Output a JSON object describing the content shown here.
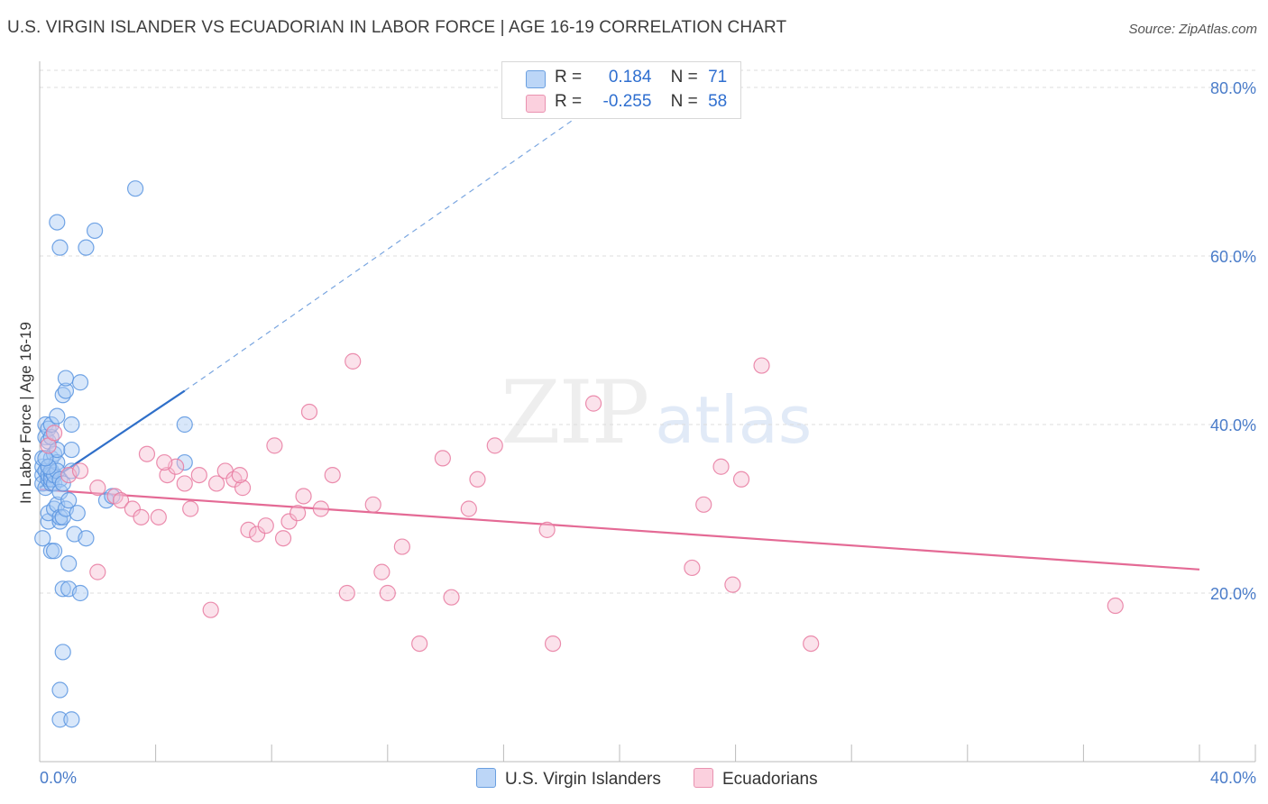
{
  "title": "U.S. VIRGIN ISLANDER VS ECUADORIAN IN LABOR FORCE | AGE 16-19 CORRELATION CHART",
  "source": "Source: ZipAtlas.com",
  "watermark": {
    "zip": "ZIP",
    "atlas": "atlas"
  },
  "legend": {
    "rows": [
      {
        "r_label": "R =",
        "r_value": "0.184",
        "n_label": "N =",
        "n_value": "71",
        "color": "#a9c9f5"
      },
      {
        "r_label": "R =",
        "r_value": "-0.255",
        "n_label": "N =",
        "n_value": "58",
        "color": "#f7bfd2"
      }
    ]
  },
  "bottom_legend": [
    {
      "label": "U.S. Virgin Islanders",
      "color": "#a9c9f5"
    },
    {
      "label": "Ecuadorians",
      "color": "#f7bfd2"
    }
  ],
  "chart_data": {
    "type": "scatter",
    "title": "U.S. VIRGIN ISLANDER VS ECUADORIAN IN LABOR FORCE | AGE 16-19 CORRELATION CHART",
    "xlabel": "",
    "ylabel": "In Labor Force | Age 16-19",
    "xlim": [
      0,
      40
    ],
    "ylim": [
      0,
      82
    ],
    "x_tick_labels": [
      "0.0%",
      "40.0%"
    ],
    "y_ticks": [
      20,
      40,
      60,
      80
    ],
    "y_tick_labels": [
      "20.0%",
      "40.0%",
      "60.0%",
      "80.0%"
    ],
    "grid": true,
    "legend_position": "top-center",
    "series": [
      {
        "name": "U.S. Virgin Islanders",
        "color": "#5a95e0",
        "fill": "#a9c9f5",
        "r": 0.184,
        "n": 71,
        "trend": {
          "x": [
            0,
            5.0
          ],
          "y": [
            32.5,
            44.0
          ],
          "extend_to": [
            20.0,
            80.0
          ]
        },
        "points": [
          [
            0.1,
            34.0
          ],
          [
            0.1,
            33.0
          ],
          [
            0.1,
            35.0
          ],
          [
            0.1,
            26.5
          ],
          [
            0.1,
            36.0
          ],
          [
            0.2,
            34.5
          ],
          [
            0.2,
            32.5
          ],
          [
            0.2,
            38.5
          ],
          [
            0.2,
            40.0
          ],
          [
            0.3,
            33.5
          ],
          [
            0.3,
            35.0
          ],
          [
            0.3,
            34.0
          ],
          [
            0.3,
            28.5
          ],
          [
            0.3,
            29.5
          ],
          [
            0.3,
            38.0
          ],
          [
            0.3,
            39.5
          ],
          [
            0.4,
            33.0
          ],
          [
            0.4,
            34.0
          ],
          [
            0.4,
            36.0
          ],
          [
            0.4,
            33.5
          ],
          [
            0.4,
            34.5
          ],
          [
            0.4,
            38.5
          ],
          [
            0.4,
            40.0
          ],
          [
            0.4,
            25.0
          ],
          [
            0.5,
            25.0
          ],
          [
            0.5,
            36.5
          ],
          [
            0.5,
            33.0
          ],
          [
            0.5,
            30.0
          ],
          [
            0.5,
            34.0
          ],
          [
            0.6,
            41.0
          ],
          [
            0.6,
            30.5
          ],
          [
            0.6,
            35.5
          ],
          [
            0.6,
            37.0
          ],
          [
            0.6,
            34.5
          ],
          [
            0.6,
            64.0
          ],
          [
            0.7,
            61.0
          ],
          [
            0.7,
            28.5
          ],
          [
            0.7,
            33.5
          ],
          [
            0.7,
            32.0
          ],
          [
            0.7,
            29.0
          ],
          [
            0.7,
            5.0
          ],
          [
            0.7,
            8.5
          ],
          [
            0.8,
            13.0
          ],
          [
            0.8,
            20.5
          ],
          [
            0.8,
            29.0
          ],
          [
            0.8,
            33.0
          ],
          [
            0.8,
            43.5
          ],
          [
            0.9,
            44.0
          ],
          [
            0.9,
            45.5
          ],
          [
            0.9,
            30.0
          ],
          [
            1.0,
            31.0
          ],
          [
            1.0,
            23.5
          ],
          [
            1.0,
            20.5
          ],
          [
            1.1,
            5.0
          ],
          [
            1.1,
            34.5
          ],
          [
            1.1,
            40.0
          ],
          [
            1.1,
            37.0
          ],
          [
            1.2,
            27.0
          ],
          [
            1.3,
            29.5
          ],
          [
            1.4,
            20.0
          ],
          [
            1.4,
            45.0
          ],
          [
            1.6,
            26.5
          ],
          [
            1.6,
            61.0
          ],
          [
            1.9,
            63.0
          ],
          [
            2.3,
            31.0
          ],
          [
            2.5,
            31.5
          ],
          [
            3.3,
            68.0
          ],
          [
            5.0,
            40.0
          ],
          [
            5.0,
            35.5
          ],
          [
            0.3,
            35.0
          ],
          [
            0.2,
            36.0
          ]
        ]
      },
      {
        "name": "Ecuadorians",
        "color": "#e87aa0",
        "fill": "#f7bfd2",
        "r": -0.255,
        "n": 58,
        "trend": {
          "x": [
            0,
            40
          ],
          "y": [
            32.3,
            22.8
          ]
        },
        "points": [
          [
            0.3,
            37.5
          ],
          [
            0.5,
            39.0
          ],
          [
            1.0,
            34.0
          ],
          [
            1.4,
            34.5
          ],
          [
            2.0,
            22.5
          ],
          [
            2.0,
            32.5
          ],
          [
            2.6,
            31.5
          ],
          [
            2.8,
            31.0
          ],
          [
            3.2,
            30.0
          ],
          [
            3.5,
            29.0
          ],
          [
            3.7,
            36.5
          ],
          [
            4.1,
            29.0
          ],
          [
            4.4,
            34.0
          ],
          [
            4.7,
            35.0
          ],
          [
            5.0,
            33.0
          ],
          [
            5.2,
            30.0
          ],
          [
            5.5,
            34.0
          ],
          [
            5.9,
            18.0
          ],
          [
            6.1,
            33.0
          ],
          [
            6.4,
            34.5
          ],
          [
            6.7,
            33.5
          ],
          [
            7.0,
            32.5
          ],
          [
            7.2,
            27.5
          ],
          [
            7.5,
            27.0
          ],
          [
            7.8,
            28.0
          ],
          [
            8.1,
            37.5
          ],
          [
            8.4,
            26.5
          ],
          [
            8.6,
            28.5
          ],
          [
            8.9,
            29.5
          ],
          [
            9.1,
            31.5
          ],
          [
            9.3,
            41.5
          ],
          [
            9.7,
            30.0
          ],
          [
            10.1,
            34.0
          ],
          [
            10.6,
            20.0
          ],
          [
            10.8,
            47.5
          ],
          [
            11.5,
            30.5
          ],
          [
            11.8,
            22.5
          ],
          [
            12.0,
            20.0
          ],
          [
            12.5,
            25.5
          ],
          [
            13.1,
            14.0
          ],
          [
            13.9,
            36.0
          ],
          [
            14.2,
            19.5
          ],
          [
            14.8,
            30.0
          ],
          [
            15.1,
            33.5
          ],
          [
            15.7,
            37.5
          ],
          [
            17.5,
            27.5
          ],
          [
            17.7,
            14.0
          ],
          [
            19.1,
            42.5
          ],
          [
            22.5,
            23.0
          ],
          [
            22.9,
            30.5
          ],
          [
            23.5,
            35.0
          ],
          [
            23.9,
            21.0
          ],
          [
            24.2,
            33.5
          ],
          [
            24.9,
            47.0
          ],
          [
            26.6,
            14.0
          ],
          [
            37.1,
            18.5
          ],
          [
            6.9,
            34.0
          ],
          [
            4.3,
            35.5
          ]
        ]
      }
    ]
  }
}
